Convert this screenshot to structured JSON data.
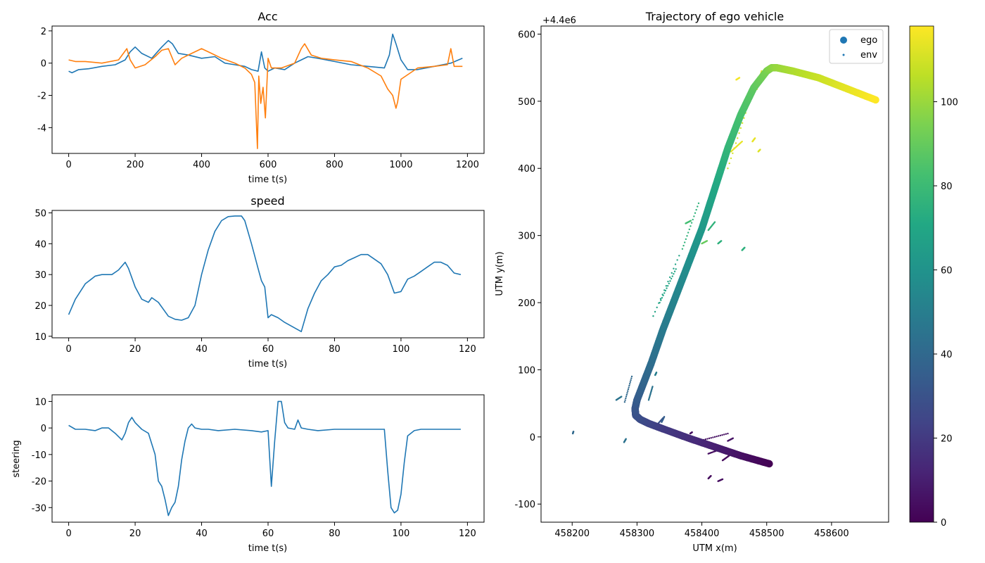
{
  "colors": {
    "series_blue": "#1f77b4",
    "series_orange": "#ff7f0e",
    "axes": "#000000"
  },
  "chart_data": [
    {
      "id": "acc",
      "type": "line",
      "title": "Acc",
      "xlabel": "time t(s)",
      "ylabel": "",
      "xlim": [
        -50,
        1250
      ],
      "ylim": [
        -5.6,
        2.3
      ],
      "xticks": [
        0,
        200,
        400,
        600,
        800,
        1000,
        1200
      ],
      "yticks": [
        -4,
        -2,
        0,
        2
      ],
      "series": [
        {
          "name": "acc_blue",
          "color": "#1f77b4",
          "x": [
            0,
            10,
            30,
            60,
            100,
            140,
            170,
            185,
            200,
            220,
            250,
            280,
            300,
            312,
            330,
            360,
            400,
            440,
            470,
            500,
            530,
            550,
            570,
            580,
            590,
            600,
            620,
            650,
            680,
            700,
            720,
            750,
            800,
            850,
            900,
            950,
            965,
            975,
            985,
            1000,
            1020,
            1050,
            1100,
            1150,
            1185
          ],
          "y": [
            -0.5,
            -0.6,
            -0.4,
            -0.35,
            -0.2,
            -0.1,
            0.2,
            0.7,
            1.0,
            0.6,
            0.3,
            1.0,
            1.4,
            1.2,
            0.6,
            0.5,
            0.3,
            0.4,
            0.0,
            -0.1,
            -0.2,
            -0.4,
            -0.5,
            0.7,
            -0.3,
            -0.5,
            -0.3,
            -0.4,
            0.0,
            0.2,
            0.4,
            0.3,
            0.1,
            -0.1,
            -0.2,
            -0.3,
            0.5,
            1.8,
            1.2,
            0.2,
            -0.4,
            -0.4,
            -0.2,
            0.0,
            0.3
          ]
        },
        {
          "name": "acc_orange",
          "color": "#ff7f0e",
          "x": [
            0,
            20,
            50,
            100,
            150,
            175,
            185,
            200,
            230,
            260,
            280,
            300,
            320,
            340,
            370,
            400,
            430,
            460,
            500,
            530,
            550,
            560,
            568,
            572,
            578,
            585,
            592,
            600,
            610,
            640,
            680,
            700,
            710,
            730,
            760,
            800,
            850,
            900,
            940,
            960,
            975,
            985,
            990,
            1000,
            1050,
            1100,
            1140,
            1150,
            1160,
            1185
          ],
          "y": [
            0.2,
            0.1,
            0.1,
            0.0,
            0.2,
            0.9,
            0.2,
            -0.3,
            -0.1,
            0.4,
            0.8,
            0.9,
            -0.1,
            0.3,
            0.6,
            0.9,
            0.6,
            0.3,
            0.0,
            -0.3,
            -0.7,
            -1.2,
            -5.3,
            -0.8,
            -2.5,
            -1.5,
            -3.4,
            0.3,
            -0.3,
            -0.3,
            0.0,
            0.9,
            1.2,
            0.5,
            0.3,
            0.2,
            0.1,
            -0.3,
            -0.8,
            -1.6,
            -2.0,
            -2.8,
            -2.4,
            -1.0,
            -0.3,
            -0.2,
            -0.1,
            0.9,
            -0.2,
            -0.2
          ]
        }
      ]
    },
    {
      "id": "speed",
      "type": "line",
      "title": "speed",
      "xlabel": "time t(s)",
      "ylabel": "",
      "xlim": [
        -5,
        125
      ],
      "ylim": [
        9.5,
        50.8
      ],
      "xticks": [
        0,
        20,
        40,
        60,
        80,
        100,
        120
      ],
      "yticks": [
        10,
        20,
        30,
        40,
        50
      ],
      "series": [
        {
          "name": "speed",
          "color": "#1f77b4",
          "x": [
            0,
            2,
            5,
            8,
            10,
            13,
            15,
            17,
            18,
            20,
            22,
            24,
            25,
            27,
            30,
            32,
            34,
            36,
            38,
            40,
            42,
            44,
            46,
            48,
            50,
            52,
            53,
            55,
            57,
            58,
            59,
            60,
            61,
            63,
            65,
            70,
            72,
            74,
            76,
            78,
            80,
            82,
            84,
            86,
            88,
            90,
            92,
            94,
            96,
            98,
            100,
            102,
            104,
            106,
            108,
            110,
            112,
            114,
            116,
            118
          ],
          "y": [
            17,
            22,
            27,
            29.5,
            30,
            30,
            31.5,
            34,
            32,
            26,
            22,
            21,
            22.5,
            21,
            16.5,
            15.5,
            15.2,
            16,
            20,
            30,
            38,
            44,
            47.5,
            48.8,
            49,
            49,
            47.5,
            40,
            32,
            28,
            26,
            16,
            17,
            16,
            14.5,
            11.5,
            19,
            24,
            28,
            30,
            32.5,
            33,
            34.5,
            35.5,
            36.5,
            36.5,
            35,
            33.5,
            30,
            24,
            24.5,
            28.5,
            29.5,
            31,
            32.5,
            34,
            34,
            33,
            30.5,
            30
          ]
        }
      ]
    },
    {
      "id": "steering",
      "type": "line",
      "title": "",
      "xlabel": "time t(s)",
      "ylabel": "steering",
      "xlim": [
        -5,
        125
      ],
      "ylim": [
        -35.5,
        12.5
      ],
      "xticks": [
        0,
        20,
        40,
        60,
        80,
        100,
        120
      ],
      "yticks": [
        -30,
        -20,
        -10,
        0,
        10
      ],
      "series": [
        {
          "name": "steering",
          "color": "#1f77b4",
          "x": [
            0,
            2,
            5,
            8,
            10,
            12,
            14,
            16,
            17,
            18,
            19,
            20,
            22,
            24,
            26,
            27,
            28,
            29,
            30,
            31,
            32,
            33,
            34,
            35,
            36,
            37,
            38,
            40,
            42,
            45,
            50,
            55,
            58,
            60,
            61,
            62,
            63,
            64,
            65,
            66,
            68,
            69,
            70,
            72,
            75,
            80,
            85,
            90,
            95,
            96,
            97,
            98,
            99,
            100,
            101,
            102,
            104,
            106,
            108,
            110,
            114,
            118
          ],
          "y": [
            1,
            -0.5,
            -0.5,
            -1,
            0,
            0,
            -2,
            -4.5,
            -2,
            2,
            4,
            2,
            -0.5,
            -2,
            -10,
            -20,
            -22,
            -27,
            -33,
            -30,
            -28,
            -22,
            -12,
            -5,
            0,
            1.5,
            0,
            -0.5,
            -0.5,
            -1,
            -0.5,
            -1,
            -1.5,
            -1,
            -22,
            -5,
            10,
            10,
            2,
            0,
            -0.5,
            3,
            0,
            -0.5,
            -1,
            -0.5,
            -0.5,
            -0.5,
            -0.5,
            -16,
            -30,
            -32,
            -31,
            -25,
            -13,
            -3,
            -1,
            -0.5,
            -0.5,
            -0.5,
            -0.5,
            -0.5
          ]
        }
      ]
    },
    {
      "id": "trajectory",
      "type": "scatter",
      "title": "Trajectory of ego vehicle",
      "xlabel": "UTM x(m)",
      "ylabel": "UTM y(m)",
      "offset_label": "+4.4e6",
      "xlim": [
        458152,
        458688
      ],
      "ylim": [
        -127,
        612
      ],
      "xticks": [
        458200,
        458300,
        458400,
        458500,
        458600
      ],
      "yticks": [
        -100,
        0,
        100,
        200,
        300,
        400,
        500,
        600
      ],
      "legend": {
        "position": "top-right",
        "entries": [
          "ego",
          "env"
        ]
      },
      "colorbar": {
        "min": 0,
        "max": 118,
        "ticks": [
          0,
          20,
          40,
          60,
          80,
          100
        ],
        "cmap": "viridis"
      },
      "ego_path": {
        "x": [
          458504,
          458460,
          458420,
          458380,
          458340,
          458318,
          458305,
          458298,
          458297,
          458300,
          458310,
          458322,
          458340,
          458360,
          458380,
          458400,
          458420,
          458440,
          458460,
          458480,
          458500,
          458508,
          458515,
          458540,
          458580,
          458620,
          458668
        ],
        "y": [
          -40,
          -28,
          -15,
          -2,
          12,
          20,
          26,
          32,
          42,
          55,
          80,
          110,
          160,
          210,
          260,
          310,
          370,
          430,
          480,
          520,
          545,
          550,
          550,
          545,
          535,
          520,
          502
        ],
        "t": [
          0,
          5,
          10,
          15,
          20,
          24,
          27,
          29,
          31,
          34,
          38,
          42,
          48,
          53,
          58,
          63,
          70,
          77,
          83,
          88,
          94,
          97,
          99,
          103,
          108,
          113,
          118
        ]
      },
      "env_segments": [
        {
          "x": [
            458281,
            458292
          ],
          "y": [
            52,
            90
          ],
          "t": 40
        },
        {
          "x": [
            458280,
            458283
          ],
          "y": [
            -8,
            -3
          ],
          "t": 45
        },
        {
          "x": [
            458268,
            458276
          ],
          "y": [
            55,
            60
          ],
          "t": 45
        },
        {
          "x": [
            458318,
            458324
          ],
          "y": [
            55,
            75
          ],
          "t": 45
        },
        {
          "x": [
            458328,
            458330
          ],
          "y": [
            92,
            96
          ],
          "t": 50
        },
        {
          "x": [
            458328,
            458340
          ],
          "y": [
            15,
            28
          ],
          "t": 30
        },
        {
          "x": [
            458338,
            458342
          ],
          "y": [
            22,
            30
          ],
          "t": 35
        },
        {
          "x": [
            458201,
            458202
          ],
          "y": [
            5,
            8
          ],
          "t": 40
        },
        {
          "x": [
            458325,
            458365
          ],
          "y": [
            180,
            270
          ],
          "t": 68
        },
        {
          "x": [
            458335,
            458360
          ],
          "y": [
            200,
            250
          ],
          "t": 70
        },
        {
          "x": [
            458370,
            458395
          ],
          "y": [
            280,
            348
          ],
          "t": 76
        },
        {
          "x": [
            458375,
            458383
          ],
          "y": [
            318,
            322
          ],
          "t": 82
        },
        {
          "x": [
            458400,
            458408
          ],
          "y": [
            288,
            292
          ],
          "t": 90
        },
        {
          "x": [
            458410,
            458420
          ],
          "y": [
            308,
            320
          ],
          "t": 76
        },
        {
          "x": [
            458425,
            458430
          ],
          "y": [
            288,
            292
          ],
          "t": 75
        },
        {
          "x": [
            458462,
            458466
          ],
          "y": [
            278,
            282
          ],
          "t": 75
        },
        {
          "x": [
            458440,
            458475
          ],
          "y": [
            400,
            505
          ],
          "t": 110
        },
        {
          "x": [
            458445,
            458462
          ],
          "y": [
            425,
            440
          ],
          "t": 114
        },
        {
          "x": [
            458478,
            458482
          ],
          "y": [
            440,
            445
          ],
          "t": 114
        },
        {
          "x": [
            458487,
            458490
          ],
          "y": [
            425,
            428
          ],
          "t": 112
        },
        {
          "x": [
            458453,
            458458
          ],
          "y": [
            532,
            535
          ],
          "t": 116
        },
        {
          "x": [
            458485,
            458492
          ],
          "y": [
            518,
            545
          ],
          "t": 112
        },
        {
          "x": [
            458400,
            458440
          ],
          "y": [
            -5,
            5
          ],
          "t": 5
        },
        {
          "x": [
            458410,
            458430
          ],
          "y": [
            -25,
            -18
          ],
          "t": 4
        },
        {
          "x": [
            458432,
            458442
          ],
          "y": [
            -35,
            -28
          ],
          "t": 3
        },
        {
          "x": [
            458410,
            458414
          ],
          "y": [
            -62,
            -58
          ],
          "t": 3
        },
        {
          "x": [
            458425,
            458432
          ],
          "y": [
            -66,
            -63
          ],
          "t": 4
        },
        {
          "x": [
            458382,
            458385
          ],
          "y": [
            5,
            7
          ],
          "t": 5
        },
        {
          "x": [
            458440,
            458448
          ],
          "y": [
            -6,
            -2
          ],
          "t": 6
        }
      ]
    }
  ]
}
